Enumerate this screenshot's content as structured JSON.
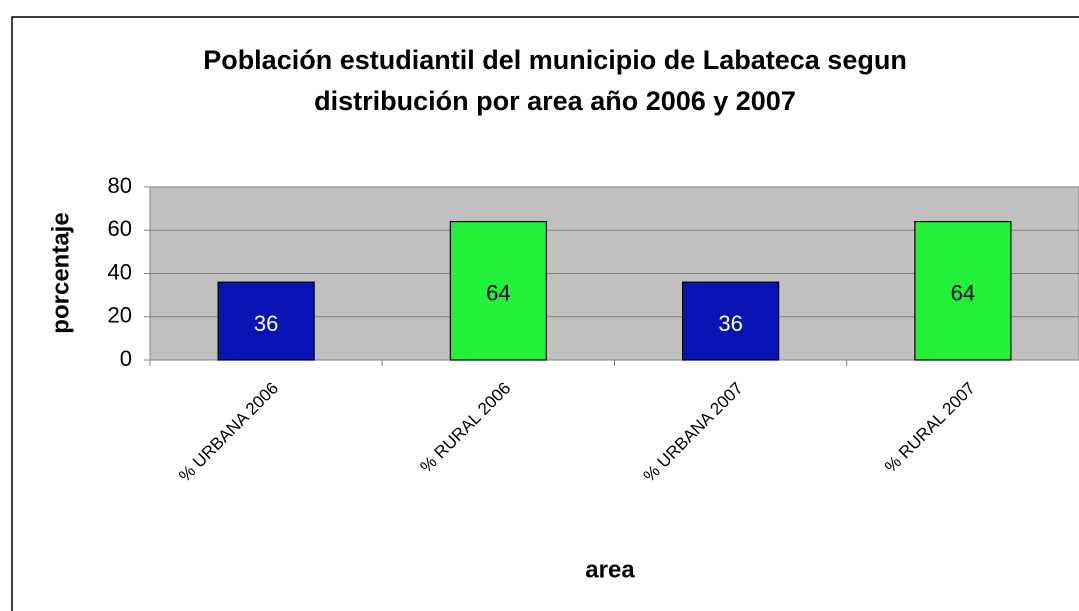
{
  "chart_data": {
    "type": "bar",
    "title": [
      "Población estudiantil del municipio de Labateca segun",
      "distribución por area año 2006 y 2007"
    ],
    "xlabel": "area",
    "ylabel": "porcentaje",
    "categories": [
      "% URBANA 2006",
      "% RURAL 2006",
      "% URBANA 2007",
      "% RURAL 2007"
    ],
    "values": [
      36,
      64,
      36,
      64
    ],
    "colors": [
      "#0a14b4",
      "#22f03a",
      "#0a14b4",
      "#22f03a"
    ],
    "label_colors": [
      "#ffffff",
      "#000000",
      "#ffffff",
      "#000000"
    ],
    "ylim": [
      0,
      80
    ],
    "yticks": [
      0,
      20,
      40,
      60,
      80
    ],
    "grid": true
  }
}
